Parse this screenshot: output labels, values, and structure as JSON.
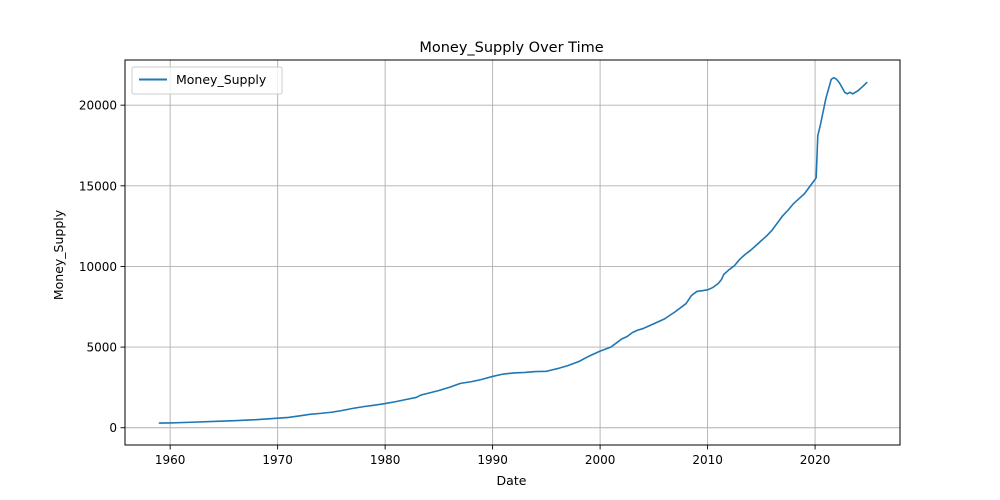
{
  "chart_data": {
    "type": "line",
    "title": "Money_Supply Over Time",
    "xlabel": "Date",
    "ylabel": "Money_Supply",
    "xlim": [
      1955.8,
      2027.9
    ],
    "ylim": [
      -1070,
      22800
    ],
    "x_ticks": [
      1960,
      1970,
      1980,
      1990,
      2000,
      2010,
      2020
    ],
    "x_tick_labels": [
      "1960",
      "1970",
      "1980",
      "1990",
      "2000",
      "2010",
      "2020"
    ],
    "y_ticks": [
      0,
      5000,
      10000,
      15000,
      20000
    ],
    "y_tick_labels": [
      "0",
      "5000",
      "10000",
      "15000",
      "20000"
    ],
    "grid": true,
    "legend": {
      "position": "upper-left",
      "entries": [
        "Money_Supply"
      ]
    },
    "series": [
      {
        "name": "Money_Supply",
        "color": "#1f77b4",
        "x": [
          1959.0,
          1960.0,
          1962.0,
          1964.0,
          1966.0,
          1968.0,
          1970.0,
          1971.0,
          1972.0,
          1973.0,
          1974.0,
          1975.0,
          1976.0,
          1977.0,
          1978.0,
          1979.0,
          1980.0,
          1981.0,
          1982.0,
          1982.9,
          1983.3,
          1984.0,
          1985.0,
          1986.0,
          1987.0,
          1988.0,
          1989.0,
          1990.0,
          1991.0,
          1992.0,
          1993.0,
          1994.0,
          1995.0,
          1995.5,
          1996.0,
          1997.0,
          1998.0,
          1999.0,
          2000.0,
          2001.0,
          2001.5,
          2002.0,
          2002.5,
          2003.0,
          2003.5,
          2004.0,
          2004.5,
          2005.0,
          2006.0,
          2007.0,
          2008.0,
          2008.5,
          2009.0,
          2009.5,
          2010.0,
          2010.5,
          2011.0,
          2011.3,
          2011.5,
          2012.0,
          2012.5,
          2013.0,
          2013.5,
          2014.0,
          2014.5,
          2015.0,
          2015.5,
          2016.0,
          2016.5,
          2017.0,
          2017.5,
          2018.0,
          2018.5,
          2019.0,
          2019.5,
          2020.0,
          2020.1,
          2020.25,
          2020.5,
          2020.75,
          2021.0,
          2021.25,
          2021.5,
          2021.75,
          2022.0,
          2022.25,
          2022.5,
          2022.75,
          2023.0,
          2023.25,
          2023.5,
          2024.0,
          2024.5,
          2024.8
        ],
        "values": [
          290,
          300,
          340,
          390,
          440,
          500,
          590,
          640,
          730,
          830,
          890,
          960,
          1070,
          1200,
          1310,
          1400,
          1500,
          1620,
          1760,
          1880,
          2020,
          2140,
          2310,
          2510,
          2750,
          2850,
          3000,
          3180,
          3330,
          3400,
          3430,
          3480,
          3500,
          3580,
          3660,
          3850,
          4100,
          4450,
          4750,
          5000,
          5250,
          5500,
          5650,
          5900,
          6050,
          6150,
          6300,
          6450,
          6750,
          7200,
          7700,
          8200,
          8450,
          8500,
          8550,
          8700,
          8950,
          9200,
          9500,
          9800,
          10050,
          10450,
          10750,
          11000,
          11300,
          11600,
          11900,
          12250,
          12700,
          13150,
          13500,
          13900,
          14200,
          14500,
          14950,
          15400,
          15500,
          18100,
          18800,
          19600,
          20400,
          21000,
          21600,
          21700,
          21600,
          21400,
          21100,
          20800,
          20700,
          20800,
          20700,
          20900,
          21200,
          21400
        ]
      }
    ]
  }
}
